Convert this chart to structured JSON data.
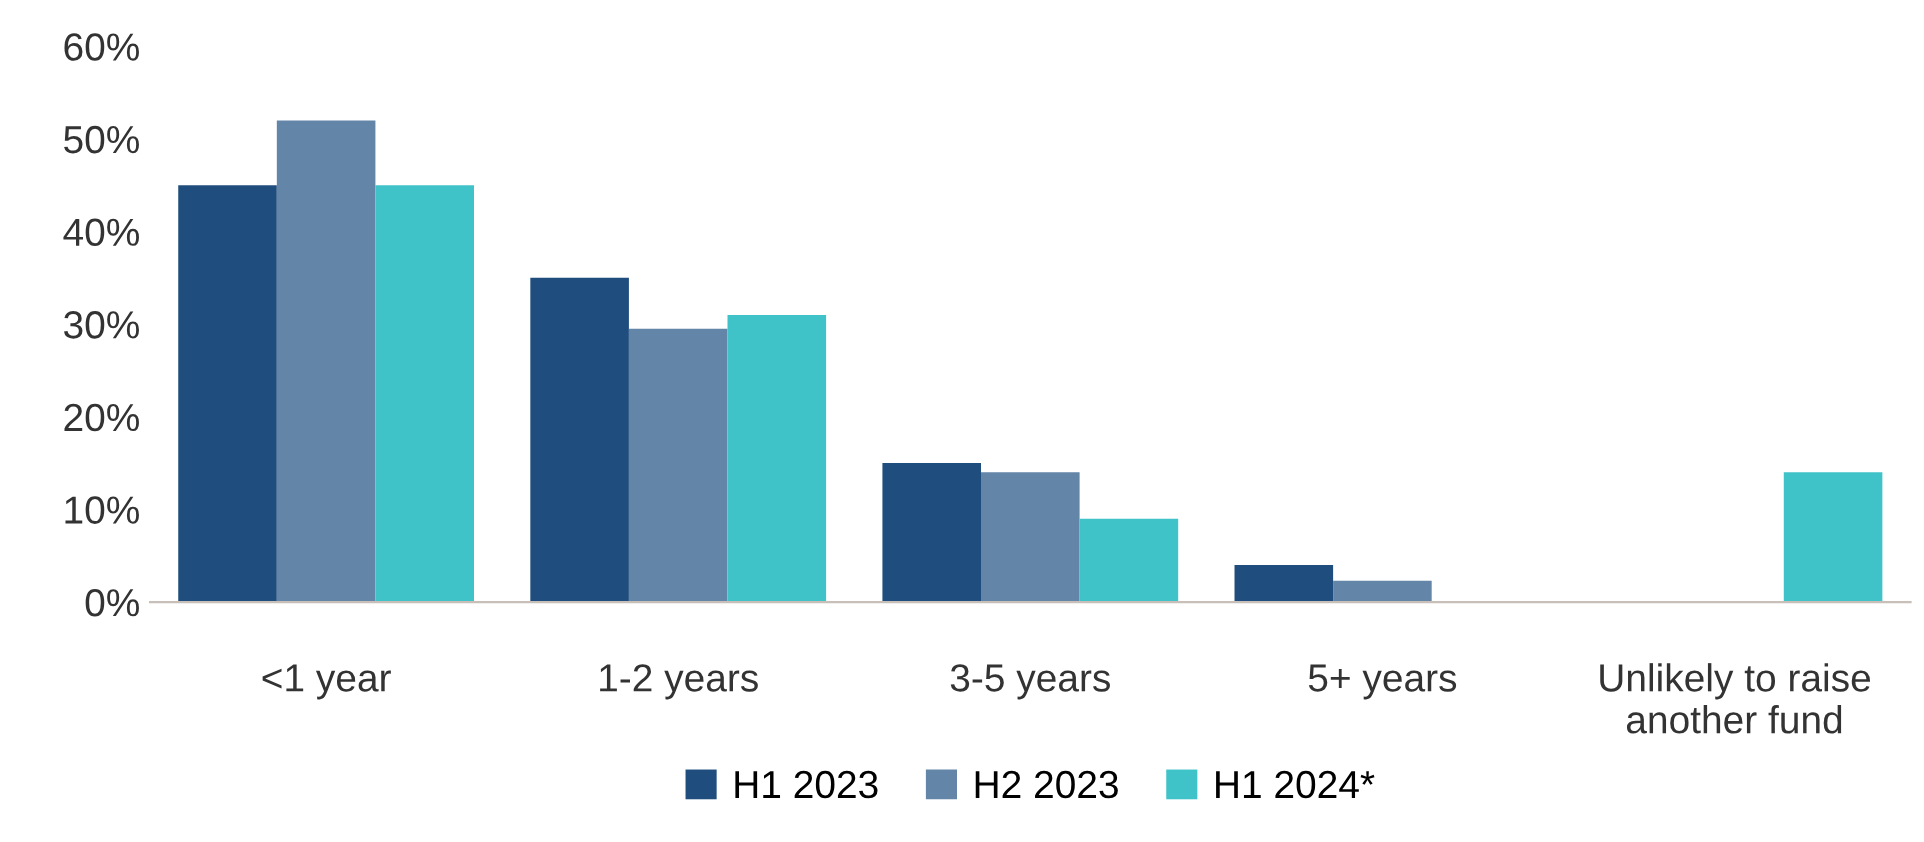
{
  "chart_data": {
    "type": "bar",
    "categories": [
      "<1 year",
      "1-2 years",
      "3-5 years",
      "5+ years",
      "Unlikely to raise\nanother fund"
    ],
    "series": [
      {
        "name": "H1 2023",
        "color": "#1f4e7e",
        "values": [
          45,
          35,
          15,
          4,
          0
        ]
      },
      {
        "name": "H2 2023",
        "color": "#6285a8",
        "values": [
          52,
          29.5,
          14,
          2.3,
          0
        ]
      },
      {
        "name": "H1 2024*",
        "color": "#40c3c8",
        "values": [
          45,
          31,
          9,
          0,
          14
        ]
      }
    ],
    "ylim": [
      0,
      60
    ],
    "yticks": [
      {
        "value": 0,
        "label": "0%"
      },
      {
        "value": 10,
        "label": "10%"
      },
      {
        "value": 20,
        "label": "20%"
      },
      {
        "value": 30,
        "label": "30%"
      },
      {
        "value": 40,
        "label": "40%"
      },
      {
        "value": 50,
        "label": "50%"
      },
      {
        "value": 60,
        "label": "60%"
      }
    ],
    "grid": false,
    "legend": "bottom"
  }
}
